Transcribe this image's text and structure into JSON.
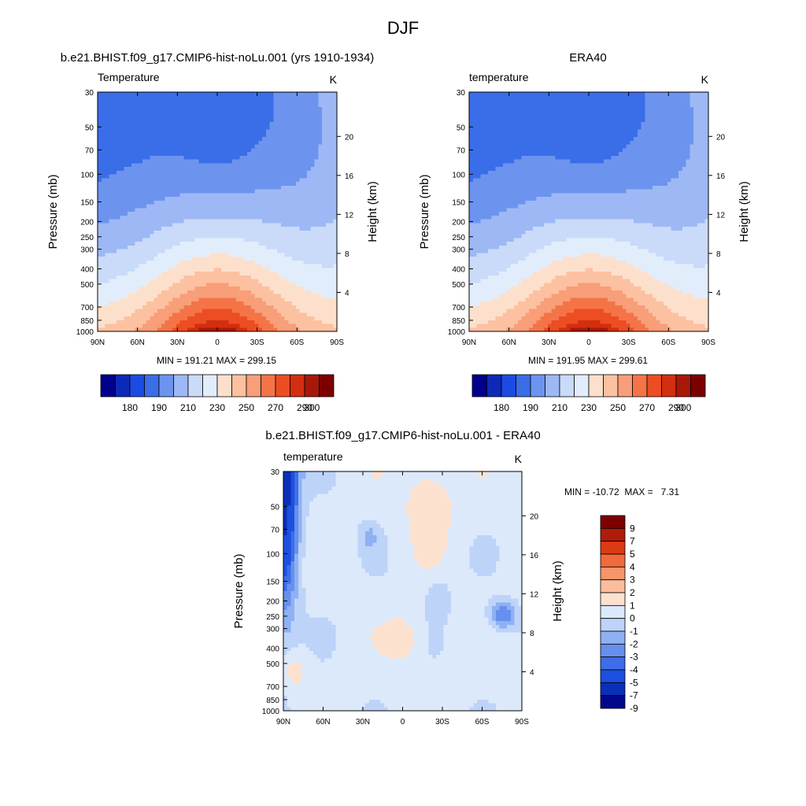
{
  "figure": {
    "title": "DJF"
  },
  "chart_data": [
    {
      "type": "heatmap",
      "title": "b.e21.BHIST.f09_g17.CMIP6-hist-noLu.001 (yrs 1910-1934)",
      "left_label": "Temperature",
      "units": "K",
      "ylabel": "Pressure (mb)",
      "ylabel_right": "Height (km)",
      "x_ticks": [
        "90N",
        "60N",
        "30N",
        "0",
        "30S",
        "60S",
        "90S"
      ],
      "y_ticks": [
        "30",
        "50",
        "70",
        "100",
        "150",
        "200",
        "250",
        "300",
        "400",
        "500",
        "700",
        "850",
        "1000"
      ],
      "height_ticks": [
        "20",
        "16",
        "12",
        "8",
        "4"
      ],
      "stats": "MIN = 191.21  MAX = 299.15",
      "min": 191.21,
      "max": 299.15,
      "colorbar_labels": [
        "180",
        "190",
        "210",
        "230",
        "250",
        "270",
        "290",
        "300"
      ],
      "colorbar_orientation": "horizontal"
    },
    {
      "type": "heatmap",
      "title": "ERA40",
      "left_label": "temperature",
      "units": "K",
      "ylabel": "Pressure (mb)",
      "ylabel_right": "Height (km)",
      "x_ticks": [
        "90N",
        "60N",
        "30N",
        "0",
        "30S",
        "60S",
        "90S"
      ],
      "y_ticks": [
        "30",
        "50",
        "70",
        "100",
        "150",
        "200",
        "250",
        "300",
        "400",
        "500",
        "700",
        "850",
        "1000"
      ],
      "height_ticks": [
        "20",
        "16",
        "12",
        "8",
        "4"
      ],
      "stats": "MIN = 191.95  MAX = 299.61",
      "min": 191.95,
      "max": 299.61,
      "colorbar_labels": [
        "180",
        "190",
        "210",
        "230",
        "250",
        "270",
        "290",
        "300"
      ],
      "colorbar_orientation": "horizontal"
    },
    {
      "type": "heatmap",
      "title": "b.e21.BHIST.f09_g17.CMIP6-hist-noLu.001 - ERA40",
      "left_label": "temperature",
      "units": "K",
      "ylabel": "Pressure (mb)",
      "ylabel_right": "Height (km)",
      "x_ticks": [
        "90N",
        "60N",
        "30N",
        "0",
        "30S",
        "60S",
        "90S"
      ],
      "y_ticks": [
        "30",
        "50",
        "70",
        "100",
        "150",
        "200",
        "250",
        "300",
        "400",
        "500",
        "700",
        "850",
        "1000"
      ],
      "height_ticks": [
        "20",
        "16",
        "12",
        "8",
        "4"
      ],
      "stats": "MIN = -10.72  MAX =   7.31",
      "min": -10.72,
      "max": 7.31,
      "colorbar_labels": [
        "9",
        "7",
        "5",
        "4",
        "3",
        "2",
        "1",
        "0",
        "-1",
        "-2",
        "-3",
        "-4",
        "-5",
        "-7",
        "-9"
      ],
      "colorbar_orientation": "vertical"
    }
  ],
  "colors": {
    "abs_scale": [
      "#00008c",
      "#0d29b8",
      "#1c4be3",
      "#3a6de8",
      "#6c94ef",
      "#9db8f5",
      "#c9dbf9",
      "#e2edfc",
      "#fde0cc",
      "#fcc1a0",
      "#f89e78",
      "#f47448",
      "#ec4d22",
      "#d32e0f",
      "#a81808",
      "#7d0000"
    ],
    "diff_scale": [
      "#7d0000",
      "#b01c0a",
      "#dc3a14",
      "#f06a3c",
      "#f8946a",
      "#fbbd9c",
      "#fde1cf",
      "#dbe9fb",
      "#bdd3f8",
      "#8eb1f3",
      "#6690ee",
      "#3d6ee8",
      "#1d4fe0",
      "#0a2fb8",
      "#00088c"
    ]
  }
}
